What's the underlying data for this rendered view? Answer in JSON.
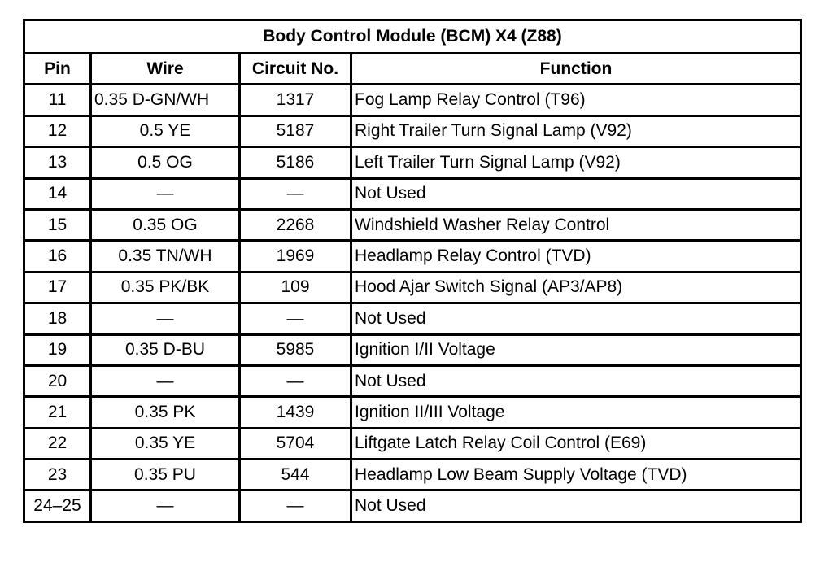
{
  "title": "Body Control Module (BCM) X4 (Z88)",
  "headers": [
    "Pin",
    "Wire",
    "Circuit No.",
    "Function"
  ],
  "rows": [
    [
      "11",
      "0.35 D-GN/WH",
      "1317",
      "Fog Lamp Relay Control (T96)"
    ],
    [
      "12",
      "0.5 YE",
      "5187",
      "Right Trailer Turn Signal Lamp (V92)"
    ],
    [
      "13",
      "0.5 OG",
      "5186",
      "Left Trailer Turn Signal Lamp (V92)"
    ],
    [
      "14",
      "—",
      "—",
      "Not Used"
    ],
    [
      "15",
      "0.35 OG",
      "2268",
      "Windshield Washer Relay Control"
    ],
    [
      "16",
      "0.35 TN/WH",
      "1969",
      "Headlamp Relay Control (TVD)"
    ],
    [
      "17",
      "0.35 PK/BK",
      "109",
      "Hood Ajar Switch Signal (AP3/AP8)"
    ],
    [
      "18",
      "—",
      "—",
      "Not Used"
    ],
    [
      "19",
      "0.35 D-BU",
      "5985",
      "Ignition I/II Voltage"
    ],
    [
      "20",
      "—",
      "—",
      "Not Used"
    ],
    [
      "21",
      "0.35 PK",
      "1439",
      "Ignition II/III Voltage"
    ],
    [
      "22",
      "0.35 YE",
      "5704",
      "Liftgate Latch Relay Coil Control (E69)"
    ],
    [
      "23",
      "0.35 PU",
      "544",
      "Headlamp Low Beam Supply Voltage (TVD)"
    ],
    [
      "24–25",
      "—",
      "—",
      "Not Used"
    ]
  ]
}
